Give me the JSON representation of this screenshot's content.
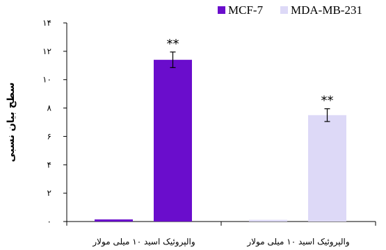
{
  "chart_data": {
    "type": "bar",
    "ylabel": "سطح بیان نسبی",
    "ylim": [
      0,
      14
    ],
    "yticks": [
      0,
      2,
      4,
      6,
      8,
      10,
      12,
      14
    ],
    "ytick_labels": [
      "۰",
      "۲",
      "۴",
      "۶",
      "۸",
      "۱۰",
      "۱۲",
      "۱۴"
    ],
    "categories": [
      "والپروئیک اسید ۱۰ میلی مولار",
      "والپروئیک اسید ۱۰ میلی مولار"
    ],
    "grid": false,
    "legend": "top-right",
    "series": [
      {
        "name": "MCF-7",
        "color": "#6a0dcc",
        "values": [
          0.15,
          11.4
        ],
        "errors": [
          0,
          0.55
        ],
        "annotations": [
          "",
          "**"
        ]
      },
      {
        "name": "MDA-MB-231",
        "color": "#ddd9f7",
        "values": [
          0.12,
          7.5
        ],
        "errors": [
          0,
          0.45
        ],
        "annotations": [
          "",
          "**"
        ]
      }
    ],
    "group_bar_series": [
      0,
      1
    ]
  }
}
